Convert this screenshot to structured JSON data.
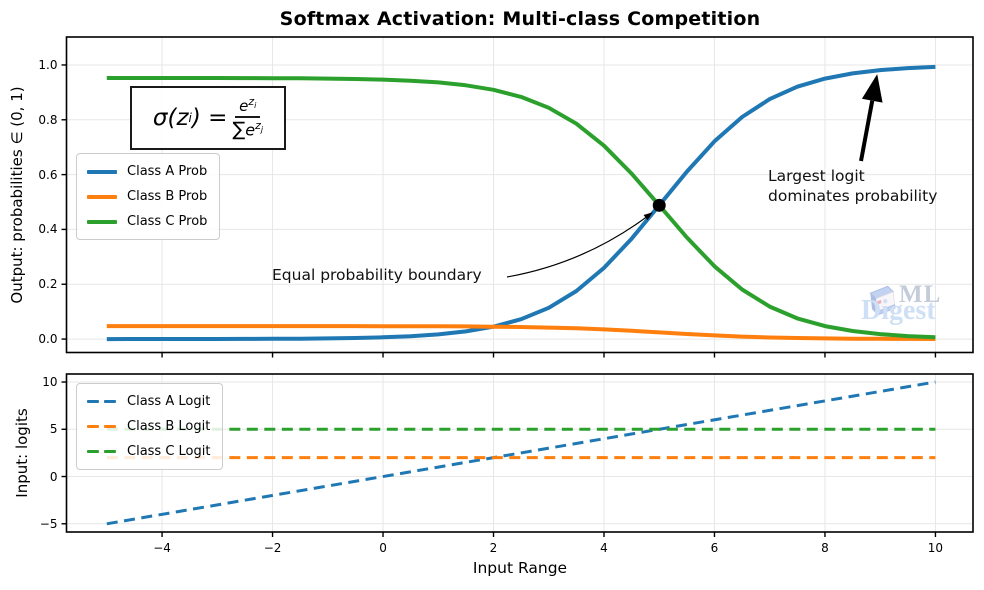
{
  "title": "Softmax Activation: Multi-class Competition",
  "formula": {
    "lhs": "σ(z",
    "lhs_sub": "i",
    "rhs_eq": ") = ",
    "num_base": "e",
    "num_sup": "z",
    "num_sup_sub": "i",
    "den_sum": "∑",
    "den_base": "e",
    "den_sup": "z",
    "den_sup_sub": "j"
  },
  "watermark": {
    "line1": "ML",
    "line2": "Digest"
  },
  "chart_data": [
    {
      "type": "line",
      "ylabel": "Output: probabilities ∈ (0, 1)",
      "xlim": [
        -5.73,
        10.68
      ],
      "ylim": [
        -0.049,
        1.102
      ],
      "grid": true,
      "xtick_values": [
        -4,
        -2,
        0,
        2,
        4,
        6,
        8,
        10
      ],
      "xticks": [],
      "ytick_values": [
        0.0,
        0.2,
        0.4,
        0.6,
        0.8,
        1.0
      ],
      "yticks": [
        "0.0",
        "0.2",
        "0.4",
        "0.6",
        "0.8",
        "1.0"
      ],
      "legend": {
        "position": "upper-left",
        "items": [
          "Class A Prob",
          "Class B Prob",
          "Class C Prob"
        ]
      },
      "x": [
        -5,
        -4.5,
        -4,
        -3.5,
        -3,
        -2.5,
        -2,
        -1.5,
        -1,
        -0.5,
        0,
        0.5,
        1,
        1.5,
        2,
        2.5,
        3,
        3.5,
        4,
        4.5,
        5,
        5.5,
        6,
        6.5,
        7,
        7.5,
        8,
        8.5,
        9,
        9.5,
        10
      ],
      "series": [
        {
          "name": "Class A Prob",
          "color": "#1f77b4",
          "style": "solid",
          "values": [
            4e-05,
            7e-05,
            0.00012,
            0.00019,
            0.00032,
            0.00053,
            0.00087,
            0.00143,
            0.00236,
            0.00388,
            0.00638,
            0.01047,
            0.01715,
            0.02796,
            0.04528,
            0.07252,
            0.11419,
            0.17529,
            0.2595,
            0.36619,
            0.48786,
            0.61097,
            0.7214,
            0.81022,
            0.8756,
            0.92067,
            0.95033,
            0.96927,
            0.98114,
            0.98847,
            0.99298
          ]
        },
        {
          "name": "Class B Prob",
          "color": "#ff7f0e",
          "style": "solid",
          "values": [
            0.04743,
            0.04742,
            0.04742,
            0.04742,
            0.04741,
            0.0474,
            0.04739,
            0.04736,
            0.04731,
            0.04724,
            0.04712,
            0.04693,
            0.04661,
            0.0461,
            0.04528,
            0.04399,
            0.04201,
            0.03911,
            0.03512,
            0.03006,
            0.02429,
            0.01845,
            0.01321,
            0.009,
            0.0059,
            0.00376,
            0.00236,
            0.00146,
            0.00089,
            0.00055,
            0.00033
          ]
        },
        {
          "name": "Class C Prob",
          "color": "#2ca02c",
          "style": "solid",
          "values": [
            0.95253,
            0.95251,
            0.95246,
            0.95239,
            0.95227,
            0.95207,
            0.95175,
            0.95121,
            0.95033,
            0.94888,
            0.9465,
            0.9426,
            0.93624,
            0.92594,
            0.90944,
            0.88349,
            0.8438,
            0.7856,
            0.70538,
            0.60375,
            0.48785,
            0.37058,
            0.26539,
            0.18078,
            0.1185,
            0.07557,
            0.04731,
            0.02927,
            0.01797,
            0.01098,
            0.00669
          ]
        }
      ],
      "marker_point": {
        "x": 5,
        "y": 0.4879
      },
      "annotations": [
        {
          "text": "Equal probability boundary",
          "target_x": 5,
          "target_y": 0.4879
        },
        {
          "line1": "Largest logit",
          "line2": "dominates probability",
          "target_x": 9,
          "target_y": 0.981
        }
      ]
    },
    {
      "type": "line",
      "ylabel": "Input: logits",
      "xlabel": "Input Range",
      "xlim": [
        -5.73,
        10.68
      ],
      "ylim": [
        -5.87,
        10.85
      ],
      "grid": true,
      "xtick_values": [
        -4,
        -2,
        0,
        2,
        4,
        6,
        8,
        10
      ],
      "xticks": [
        "−4",
        "−2",
        "0",
        "2",
        "4",
        "6",
        "8",
        "10"
      ],
      "ytick_values": [
        -5,
        0,
        5,
        10
      ],
      "yticks": [
        "−5",
        "0",
        "5",
        "10"
      ],
      "legend": {
        "position": "upper-left",
        "items": [
          "Class A Logit",
          "Class B Logit",
          "Class C Logit"
        ]
      },
      "series": [
        {
          "name": "Class A Logit",
          "color": "#1f77b4",
          "style": "dashed",
          "x": [
            -5,
            10
          ],
          "y": [
            -5,
            10
          ]
        },
        {
          "name": "Class B Logit",
          "color": "#ff7f0e",
          "style": "dashed",
          "x": [
            -5,
            10
          ],
          "y": [
            2,
            2
          ]
        },
        {
          "name": "Class C Logit",
          "color": "#2ca02c",
          "style": "dashed",
          "x": [
            -5,
            10
          ],
          "y": [
            5,
            5
          ]
        }
      ]
    }
  ]
}
